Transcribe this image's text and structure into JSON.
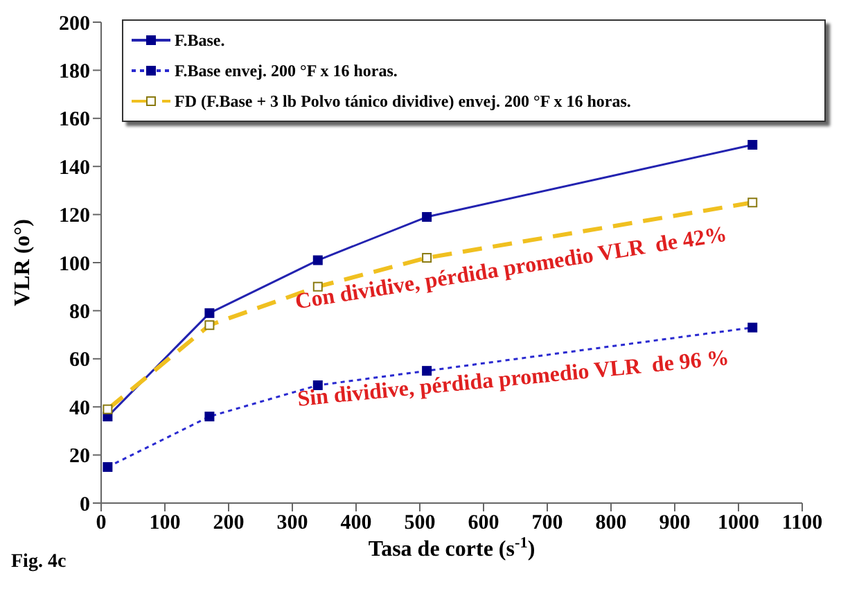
{
  "chart_data": {
    "type": "line",
    "xlabel": "Tasa de corte (s$^{-1}$)",
    "ylabel": "VLR (o°)",
    "x": [
      10.2,
      170,
      340,
      511,
      1022
    ],
    "series": [
      {
        "name": "F.Base.",
        "color": "#2323b0",
        "values": [
          36,
          79,
          101,
          119,
          149
        ],
        "line_style": "solid"
      },
      {
        "name": "F.Base envej. 200 °F x 16 horas.",
        "color": "#2a2ad0",
        "values": [
          15,
          36,
          49,
          55,
          73
        ],
        "line_style": "dotted"
      },
      {
        "name": "FD (F.Base + 3 lb Polvo tánico dividive) envej. 200 °F x 16 horas.",
        "color": "#f0c020",
        "values": [
          39,
          74,
          90,
          102,
          125
        ],
        "line_style": "dashed"
      }
    ],
    "xlim": [
      0,
      1100
    ],
    "xticks": [
      0,
      100,
      200,
      300,
      400,
      500,
      600,
      700,
      800,
      900,
      1000,
      1100
    ],
    "ylim": [
      0,
      200
    ],
    "yticks": [
      0,
      20,
      40,
      60,
      80,
      100,
      120,
      140,
      160,
      180,
      200
    ],
    "grid": false,
    "legend": "top",
    "marker": "square",
    "annotations": [
      "Con dividive, pérdida promedio VLR  de 42%",
      "Sin dividive, pérdida promedio VLR  de 96 %",
      "Fig. 4c"
    ]
  }
}
